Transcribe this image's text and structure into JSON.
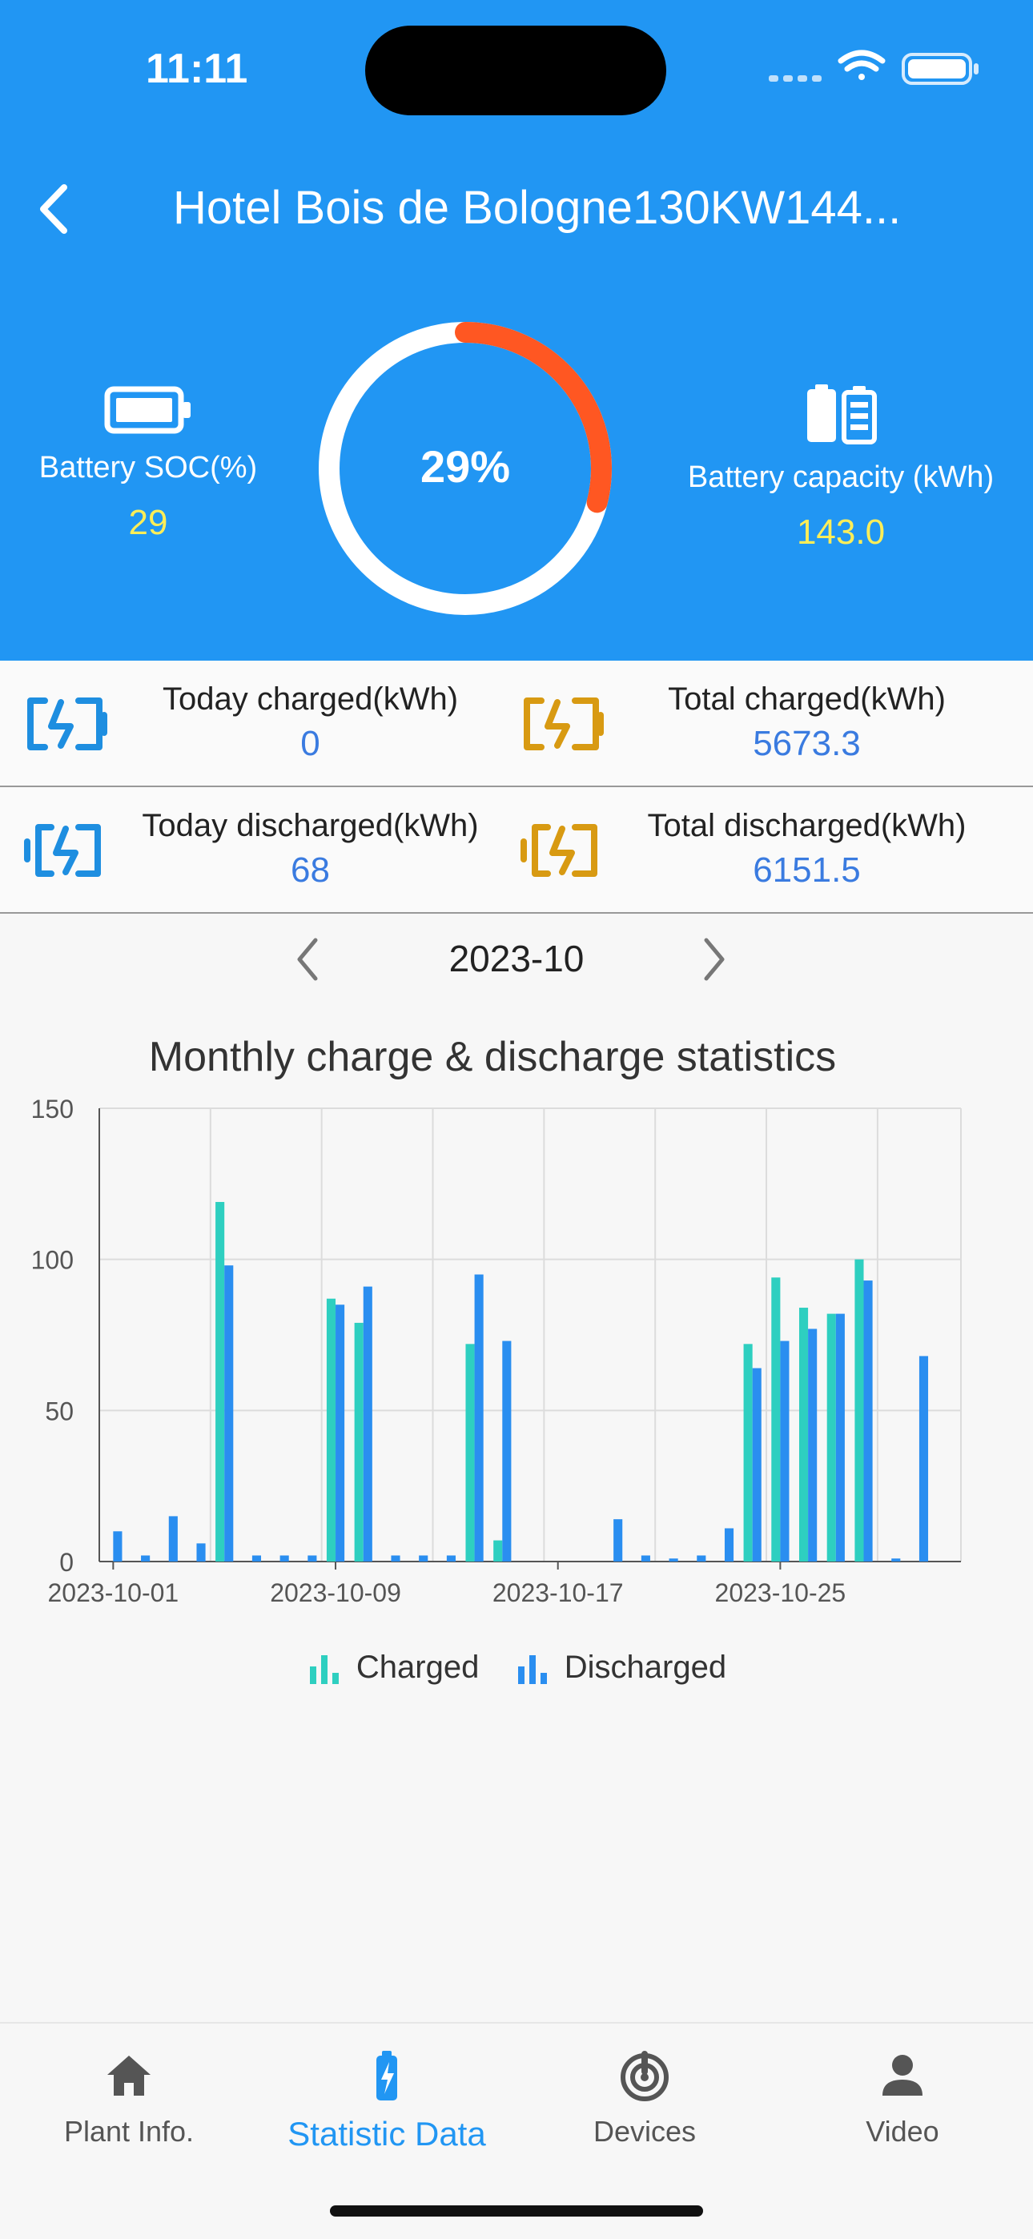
{
  "status_bar": {
    "time": "11:11"
  },
  "header": {
    "title": "Hotel Bois de Bologne130KW144...",
    "back_icon": "chevron-left-icon",
    "battery_soc": {
      "label": "Battery SOC(%)",
      "value": "29"
    },
    "gauge": {
      "label": "29%",
      "percent": 29,
      "track_color": "#ffffff",
      "fill_color": "#ff5722"
    },
    "battery_capacity": {
      "label": "Battery capacity (kWh)",
      "value": "143.0"
    }
  },
  "stats": [
    {
      "label": "Today charged(kWh)",
      "value": "0",
      "icon": "battery-charge-icon",
      "color": "#1e8ee0"
    },
    {
      "label": "Total charged(kWh)",
      "value": "5673.3",
      "icon": "battery-charge-icon",
      "color": "#d89a12"
    },
    {
      "label": "Today discharged(kWh)",
      "value": "68",
      "icon": "battery-discharge-icon",
      "color": "#1e8ee0"
    },
    {
      "label": "Total discharged(kWh)",
      "value": "6151.5",
      "icon": "battery-discharge-icon",
      "color": "#d89a12"
    }
  ],
  "month_nav": {
    "label": "2023-10"
  },
  "chart_data": {
    "type": "bar",
    "title": "Monthly charge & discharge statistics",
    "categories": [
      "2023-10-01",
      "2023-10-02",
      "2023-10-03",
      "2023-10-04",
      "2023-10-05",
      "2023-10-06",
      "2023-10-07",
      "2023-10-08",
      "2023-10-09",
      "2023-10-10",
      "2023-10-11",
      "2023-10-12",
      "2023-10-13",
      "2023-10-14",
      "2023-10-15",
      "2023-10-16",
      "2023-10-17",
      "2023-10-18",
      "2023-10-19",
      "2023-10-20",
      "2023-10-21",
      "2023-10-22",
      "2023-10-23",
      "2023-10-24",
      "2023-10-25",
      "2023-10-26",
      "2023-10-27",
      "2023-10-28",
      "2023-10-29",
      "2023-10-30",
      "2023-10-31"
    ],
    "x_tick_labels": [
      "2023-10-01",
      "2023-10-09",
      "2023-10-17",
      "2023-10-25"
    ],
    "y_ticks": [
      0,
      50,
      100,
      150
    ],
    "ylim": [
      0,
      150
    ],
    "grid": true,
    "legend_position": "bottom",
    "series": [
      {
        "name": "Charged",
        "color": "#2ecfc0",
        "values": [
          0,
          0,
          0,
          0,
          119,
          0,
          0,
          0,
          87,
          79,
          0,
          0,
          0,
          72,
          7,
          0,
          0,
          0,
          0,
          0,
          0,
          0,
          0,
          72,
          94,
          84,
          82,
          100,
          0,
          0,
          0
        ]
      },
      {
        "name": "Discharged",
        "color": "#2a8ef0",
        "values": [
          10,
          2,
          15,
          6,
          98,
          2,
          2,
          2,
          85,
          91,
          2,
          2,
          2,
          95,
          73,
          0,
          0,
          0,
          14,
          2,
          1,
          2,
          11,
          64,
          73,
          77,
          82,
          93,
          1,
          68,
          0
        ]
      }
    ]
  },
  "tabs": [
    {
      "label": "Plant Info.",
      "icon": "home-icon",
      "active": false
    },
    {
      "label": "Statistic Data",
      "icon": "battery-bolt-icon",
      "active": true
    },
    {
      "label": "Devices",
      "icon": "devices-icon",
      "active": false
    },
    {
      "label": "Video",
      "icon": "person-icon",
      "active": false
    }
  ]
}
